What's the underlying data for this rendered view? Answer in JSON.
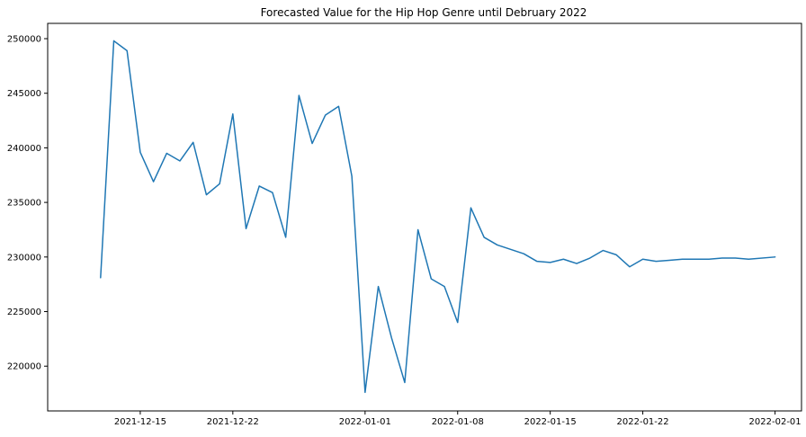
{
  "chart_data": {
    "type": "line",
    "title": "Forecasted Value for the Hip Hop Genre until Debruary 2022",
    "xlabel": "",
    "ylabel": "",
    "x_type": "date",
    "x_ticks": [
      "2021-12-15",
      "2021-12-22",
      "2022-01-01",
      "2022-01-08",
      "2022-01-15",
      "2022-01-22",
      "2022-02-01"
    ],
    "y_ticks": [
      220000,
      225000,
      230000,
      235000,
      240000,
      245000,
      250000
    ],
    "xlim": [
      "2021-12-08",
      "2022-02-03"
    ],
    "ylim": [
      215900,
      251400
    ],
    "grid": false,
    "legend": "none",
    "series": [
      {
        "color": "#1f77b4",
        "x": [
          "2021-12-12",
          "2021-12-13",
          "2021-12-14",
          "2021-12-15",
          "2021-12-16",
          "2021-12-17",
          "2021-12-18",
          "2021-12-19",
          "2021-12-20",
          "2021-12-21",
          "2021-12-22",
          "2021-12-23",
          "2021-12-24",
          "2021-12-25",
          "2021-12-26",
          "2021-12-27",
          "2021-12-28",
          "2021-12-29",
          "2021-12-30",
          "2021-12-31",
          "2022-01-01",
          "2022-01-02",
          "2022-01-03",
          "2022-01-04",
          "2022-01-05",
          "2022-01-06",
          "2022-01-07",
          "2022-01-08",
          "2022-01-09",
          "2022-01-10",
          "2022-01-11",
          "2022-01-12",
          "2022-01-13",
          "2022-01-14",
          "2022-01-15",
          "2022-01-16",
          "2022-01-17",
          "2022-01-18",
          "2022-01-19",
          "2022-01-20",
          "2022-01-21",
          "2022-01-22",
          "2022-01-23",
          "2022-01-24",
          "2022-01-25",
          "2022-01-26",
          "2022-01-27",
          "2022-01-28",
          "2022-01-29",
          "2022-01-30",
          "2022-02-01"
        ],
        "values": [
          228100,
          249800,
          248900,
          239600,
          236900,
          239500,
          238800,
          240500,
          235700,
          236700,
          243100,
          232600,
          236500,
          235900,
          231800,
          244800,
          240400,
          243000,
          243800,
          237400,
          217600,
          227300,
          222600,
          218500,
          232500,
          228000,
          227300,
          224000,
          234500,
          231800,
          231100,
          230700,
          230300,
          229600,
          229500,
          229800,
          229400,
          229900,
          230600,
          230200,
          229100,
          229800,
          229600,
          229700,
          229800,
          229800,
          229800,
          229900,
          229900,
          229800,
          230000
        ]
      }
    ]
  }
}
